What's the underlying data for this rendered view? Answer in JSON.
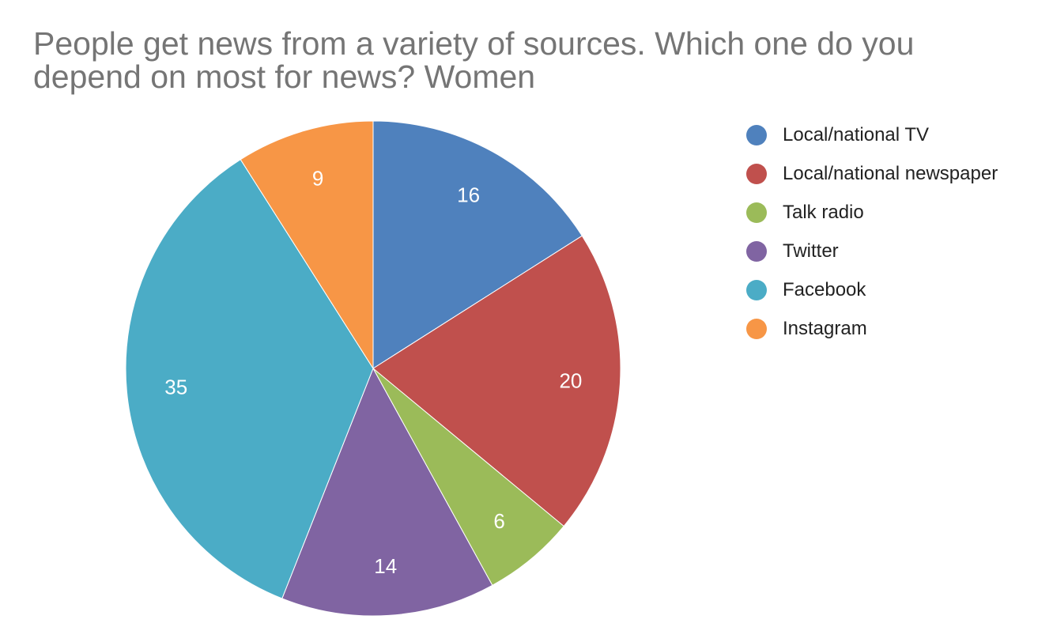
{
  "chart_data": {
    "type": "pie",
    "title": "People get news from a variety of sources. Which one do you depend on most for news? Women",
    "categories": [
      "Local/national TV",
      "Local/national newspaper",
      "Talk radio",
      "Twitter",
      "Facebook",
      "Instagram"
    ],
    "values": [
      16,
      20,
      6,
      14,
      35,
      9
    ],
    "colors": [
      "#4f81bd",
      "#c0504d",
      "#9bbb59",
      "#8064a2",
      "#4bacc6",
      "#f79646"
    ],
    "legend_position": "right",
    "data_labels": true,
    "start_angle": "12 o'clock",
    "direction": "clockwise"
  }
}
